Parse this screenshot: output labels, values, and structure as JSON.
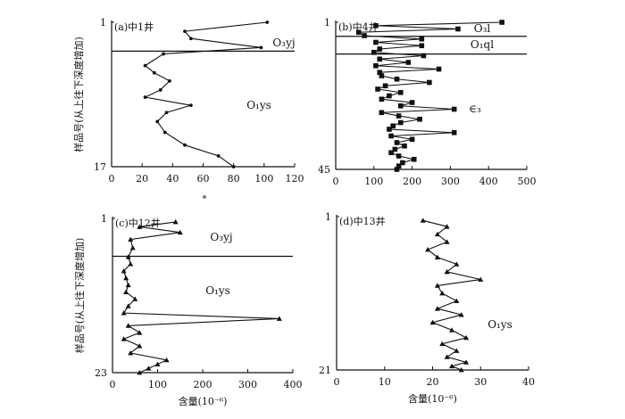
{
  "chart_data": [
    {
      "type": "line",
      "orientation": "vertical-profile",
      "panel_label": "(a)中1井",
      "x_ticks": [
        "0",
        "20",
        "40",
        "60",
        "80",
        "100",
        "120"
      ],
      "xlim": [
        0,
        120
      ],
      "y_ticks": [
        "1",
        "17"
      ],
      "ylim": [
        1,
        17
      ],
      "ylabel": "样品号(从上往下深度增加)",
      "xlabel": "",
      "marker": "dot",
      "boundaries": [
        4.2
      ],
      "units": [
        {
          "label": "O₃yj"
        },
        {
          "label": "O₁ys"
        }
      ],
      "series": [
        {
          "x": [
            102,
            48,
            52,
            98,
            34,
            22,
            28,
            38,
            32,
            22,
            52,
            36,
            30,
            35,
            48,
            70,
            80
          ],
          "y": [
            1,
            2,
            2.8,
            3.8,
            4.5,
            5.8,
            6.6,
            7.5,
            8.5,
            9.3,
            10.2,
            11.0,
            12.0,
            13.2,
            14.6,
            15.8,
            17
          ]
        }
      ]
    },
    {
      "type": "line",
      "orientation": "vertical-profile",
      "panel_label": "(b)中4井",
      "x_ticks": [
        "0",
        "100",
        "200",
        "300",
        "400",
        "500"
      ],
      "xlim": [
        0,
        500
      ],
      "y_ticks": [
        "1",
        "45"
      ],
      "ylim": [
        1,
        45
      ],
      "ylabel": "",
      "xlabel": "",
      "marker": "square",
      "boundaries": [
        5.2,
        10.5
      ],
      "units": [
        {
          "label": "O₃l"
        },
        {
          "label": "O₁ql"
        },
        {
          "label": "∈₃"
        }
      ],
      "series": [
        {
          "x": [
            435,
            105,
            320,
            60,
            75,
            225,
            105,
            225,
            115,
            100,
            230,
            115,
            190,
            105,
            270,
            115,
            120,
            160,
            245,
            130,
            110,
            170,
            140,
            120,
            200,
            170,
            310,
            120,
            165,
            220,
            170,
            150,
            140,
            310,
            145,
            200,
            160,
            180,
            155,
            145,
            165,
            205,
            175,
            165,
            160
          ],
          "y": [
            1,
            2,
            3,
            4,
            5,
            6,
            7,
            8,
            9,
            10,
            11,
            12,
            13,
            14,
            15,
            16,
            17,
            18,
            19,
            20,
            21,
            22,
            23,
            24,
            25,
            26,
            27,
            28,
            29,
            30,
            31,
            32,
            33,
            34,
            35,
            36,
            37,
            38,
            39,
            40,
            41,
            42,
            43,
            44,
            45
          ]
        }
      ]
    },
    {
      "type": "line",
      "orientation": "vertical-profile",
      "panel_label": "(c)中12井",
      "x_ticks": [
        "0",
        "100",
        "200",
        "300",
        "400"
      ],
      "xlim": [
        0,
        400
      ],
      "y_ticks": [
        "1",
        "23"
      ],
      "ylim": [
        1,
        23
      ],
      "ylabel": "样品号(从上往下深度增加)",
      "xlabel": "含量(10⁻⁶)",
      "marker": "triangle",
      "boundaries": [
        6.4
      ],
      "units": [
        {
          "label": "O₃yj"
        },
        {
          "label": "O₁ys"
        }
      ],
      "series": [
        {
          "x": [
            140,
            60,
            150,
            40,
            45,
            35,
            40,
            25,
            30,
            35,
            30,
            50,
            35,
            25,
            370,
            35,
            60,
            25,
            60,
            40,
            120,
            100,
            80,
            60
          ],
          "y": [
            1.5,
            2.2,
            3.0,
            4.0,
            5.2,
            6.5,
            7.5,
            8.5,
            9.5,
            10.5,
            11.5,
            12.5,
            13.5,
            14.5,
            15.3,
            16.3,
            17.3,
            18.2,
            19.2,
            20.2,
            21.2,
            21.8,
            22.4,
            23
          ]
        }
      ]
    },
    {
      "type": "line",
      "orientation": "vertical-profile",
      "panel_label": "(d)中13井",
      "x_ticks": [
        "0",
        "10",
        "20",
        "30",
        "40"
      ],
      "xlim": [
        0,
        40
      ],
      "y_ticks": [
        "1",
        "21"
      ],
      "ylim": [
        1,
        21
      ],
      "ylabel": "",
      "xlabel": "含量(10⁻⁶)",
      "marker": "triangle",
      "boundaries": [],
      "units": [
        {
          "label": "O₁ys"
        }
      ],
      "series": [
        {
          "x": [
            18,
            23,
            21,
            23,
            19,
            21,
            25,
            23,
            30,
            21,
            22,
            25,
            21,
            26,
            20,
            24,
            27,
            22,
            25,
            23,
            27,
            24,
            26
          ],
          "y": [
            1.5,
            2.3,
            3.3,
            4.3,
            5.3,
            6.3,
            7.2,
            8.2,
            9.2,
            10.0,
            11.0,
            12.0,
            13.0,
            13.8,
            14.8,
            15.8,
            16.8,
            17.6,
            18.5,
            19.3,
            20.0,
            20.5,
            21.0
          ]
        }
      ]
    }
  ],
  "footer_mark": "*"
}
